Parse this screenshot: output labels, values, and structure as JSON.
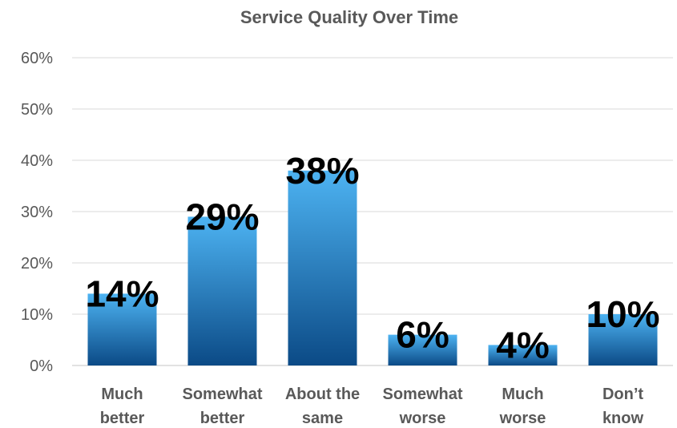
{
  "chart_data": {
    "type": "bar",
    "title": "Service Quality Over Time",
    "categories": [
      [
        "Much",
        "better"
      ],
      [
        "Somewhat",
        "better"
      ],
      [
        "About the",
        "same"
      ],
      [
        "Somewhat",
        "worse"
      ],
      [
        "Much",
        "worse"
      ],
      [
        "Don’t",
        "know"
      ]
    ],
    "values": [
      14,
      29,
      38,
      6,
      4,
      10
    ],
    "data_labels": [
      "14%",
      "29%",
      "38%",
      "6%",
      "4%",
      "10%"
    ],
    "ylim": [
      0,
      60
    ],
    "yticks": [
      0,
      10,
      20,
      30,
      40,
      50,
      60
    ],
    "ytick_labels": [
      "0%",
      "10%",
      "20%",
      "30%",
      "40%",
      "50%",
      "60%"
    ],
    "xlabel": "",
    "ylabel": "",
    "grid": true,
    "legend": "none",
    "colors": {
      "bar_top": "#4db3f2",
      "bar_bottom": "#0b4a86",
      "grid": "#d9d9d9",
      "text": "#595959",
      "label": "#000000"
    }
  }
}
